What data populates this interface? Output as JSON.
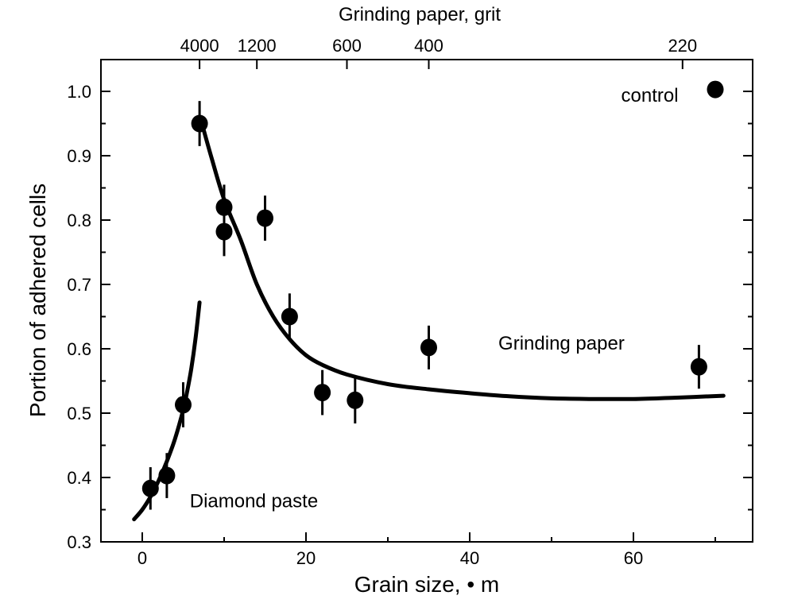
{
  "chart_data": {
    "type": "scatter",
    "title": "",
    "xlabel": "Grain size, • m",
    "ylabel": "Portion of adhered cells",
    "xlim": [
      -5,
      75
    ],
    "ylim": [
      0.3,
      1.05
    ],
    "x_ticks": [
      0,
      20,
      40,
      60
    ],
    "x_tick_labels": [
      "0",
      "20",
      "40",
      "60"
    ],
    "y_ticks": [
      0.3,
      0.4,
      0.5,
      0.6,
      0.7,
      0.8,
      0.9,
      1.0
    ],
    "y_tick_labels": [
      "0.3",
      "0.4",
      "0.5",
      "0.6",
      "0.7",
      "0.8",
      "0.9",
      "1.0"
    ],
    "top_axis": {
      "label": "Grinding paper, grit",
      "ticks": [
        {
          "x": 7,
          "label": "4000"
        },
        {
          "x": 14,
          "label": "1200"
        },
        {
          "x": 25,
          "label": "600"
        },
        {
          "x": 35,
          "label": "400"
        },
        {
          "x": 66,
          "label": "220"
        }
      ]
    },
    "series": [
      {
        "name": "Diamond paste",
        "points": [
          {
            "x": 1,
            "y": 0.383,
            "err": 0.033
          },
          {
            "x": 3,
            "y": 0.403,
            "err": 0.035
          },
          {
            "x": 5,
            "y": 0.513,
            "err": 0.035
          }
        ]
      },
      {
        "name": "Grinding paper",
        "points": [
          {
            "x": 7,
            "y": 0.95,
            "err": 0.035
          },
          {
            "x": 10,
            "y": 0.82,
            "err": 0.035
          },
          {
            "x": 10,
            "y": 0.782,
            "err": 0.038
          },
          {
            "x": 15,
            "y": 0.803,
            "err": 0.035
          },
          {
            "x": 18,
            "y": 0.65,
            "err": 0.036
          },
          {
            "x": 22,
            "y": 0.532,
            "err": 0.035
          },
          {
            "x": 26,
            "y": 0.52,
            "err": 0.036
          },
          {
            "x": 35,
            "y": 0.602,
            "err": 0.034
          },
          {
            "x": 68,
            "y": 0.572,
            "err": 0.034
          }
        ]
      },
      {
        "name": "control",
        "points": [
          {
            "x": 70,
            "y": 1.003,
            "err": 0
          }
        ]
      }
    ],
    "fit_curves": [
      {
        "name": "Diamond paste fit",
        "x": [
          -1,
          0,
          1,
          2,
          3,
          4,
          5,
          5.5,
          6,
          6.5,
          7
        ],
        "y": [
          0.335,
          0.35,
          0.37,
          0.395,
          0.425,
          0.46,
          0.505,
          0.535,
          0.57,
          0.615,
          0.672
        ]
      },
      {
        "name": "Grinding paper fit",
        "x": [
          7.5,
          8.5,
          10,
          12,
          14,
          16,
          18,
          20,
          22,
          25,
          30,
          35,
          40,
          45,
          50,
          55,
          60,
          65,
          71
        ],
        "y": [
          0.94,
          0.895,
          0.832,
          0.77,
          0.7,
          0.65,
          0.615,
          0.59,
          0.575,
          0.56,
          0.545,
          0.537,
          0.531,
          0.526,
          0.523,
          0.522,
          0.522,
          0.524,
          0.527
        ]
      }
    ],
    "annotations": [
      {
        "text": "control",
        "x": 58.5,
        "y": 0.995
      },
      {
        "text": "Grinding paper",
        "x": 43.5,
        "y": 0.61
      },
      {
        "text": "Diamond paste",
        "x": 5.8,
        "y": 0.365
      }
    ]
  }
}
